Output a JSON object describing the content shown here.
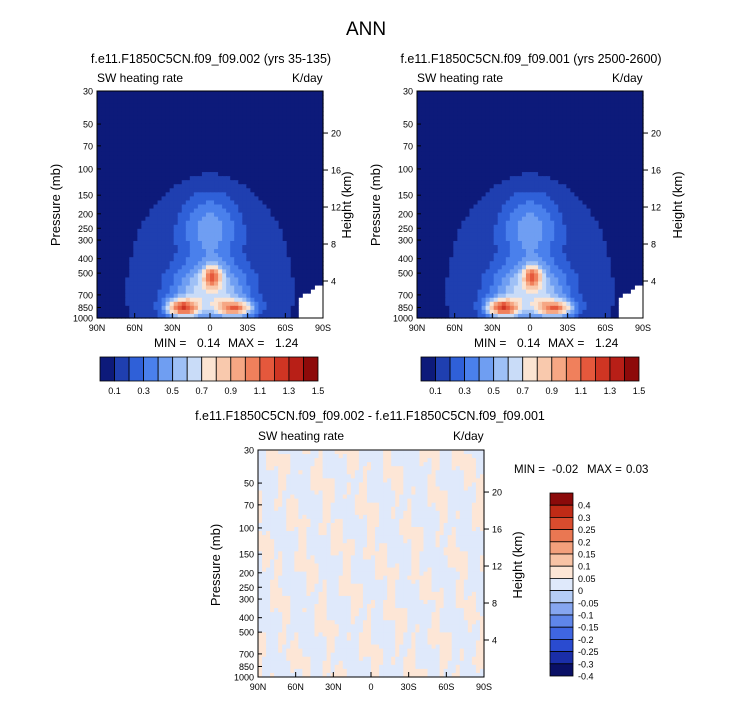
{
  "page_title": "ANN",
  "colors": {
    "abs": [
      "#0d1a7a",
      "#1f3fb0",
      "#2f60d8",
      "#4a80ec",
      "#6f9ef2",
      "#9ec0f6",
      "#c9dcf8",
      "#fbe4d2",
      "#f9c9ad",
      "#f6a784",
      "#f0805c",
      "#e5583c",
      "#cf3523",
      "#b81f17",
      "#8e0a0a"
    ],
    "diff": [
      "#0a1066",
      "#1a2ea8",
      "#2a4bd0",
      "#3f66e2",
      "#5f86ea",
      "#86a6f0",
      "#b5cdf6",
      "#dfe9fb",
      "#fde6d6",
      "#f8c3a5",
      "#f3a07c",
      "#ea7752",
      "#d94c2e",
      "#c02b16",
      "#8b0a0a"
    ]
  },
  "chart_data": [
    {
      "type": "heatmap",
      "title": "f.e11.F1850C5CN.f09_f09.002 (yrs 35-135)",
      "field_label": "SW heating rate",
      "units_label": "K/day",
      "ylabel": "Pressure (mb)",
      "ylabel_right": "Height (km)",
      "x_ticks": [
        "90N",
        "60N",
        "30N",
        "0",
        "30S",
        "60S",
        "90S"
      ],
      "y_ticks": [
        "30",
        "50",
        "70",
        "100",
        "150",
        "200",
        "250",
        "300",
        "400",
        "500",
        "700",
        "850",
        "1000"
      ],
      "y_right_ticks": [
        "20",
        "16",
        "12",
        "8",
        "4"
      ],
      "ylim": [
        1000,
        30
      ],
      "y_scale": "log",
      "min_label": "MIN =",
      "min_value": "0.14",
      "max_label": "MAX =",
      "max_value": "1.24",
      "levels": [
        0.1,
        0.2,
        0.3,
        0.4,
        0.5,
        0.6,
        0.7,
        0.8,
        0.9,
        1.0,
        1.1,
        1.2,
        1.3,
        1.4,
        1.5
      ],
      "colorbar_labels": [
        "0.1",
        "0.3",
        "0.5",
        "0.7",
        "0.9",
        "1.1",
        "1.3",
        "1.5"
      ]
    },
    {
      "type": "heatmap",
      "title": "f.e11.F1850C5CN.f09_f09.001 (yrs 2500-2600)",
      "field_label": "SW heating rate",
      "units_label": "K/day",
      "ylabel": "Pressure (mb)",
      "ylabel_right": "Height (km)",
      "x_ticks": [
        "90N",
        "60N",
        "30N",
        "0",
        "30S",
        "60S",
        "90S"
      ],
      "y_ticks": [
        "30",
        "50",
        "70",
        "100",
        "150",
        "200",
        "250",
        "300",
        "400",
        "500",
        "700",
        "850",
        "1000"
      ],
      "y_right_ticks": [
        "20",
        "16",
        "12",
        "8",
        "4"
      ],
      "ylim": [
        1000,
        30
      ],
      "y_scale": "log",
      "min_label": "MIN =",
      "min_value": "0.14",
      "max_label": "MAX =",
      "max_value": "1.24",
      "levels": [
        0.1,
        0.2,
        0.3,
        0.4,
        0.5,
        0.6,
        0.7,
        0.8,
        0.9,
        1.0,
        1.1,
        1.2,
        1.3,
        1.4,
        1.5
      ],
      "colorbar_labels": [
        "0.1",
        "0.3",
        "0.5",
        "0.7",
        "0.9",
        "1.1",
        "1.3",
        "1.5"
      ]
    },
    {
      "type": "heatmap",
      "title": "f.e11.F1850C5CN.f09_f09.002 - f.e11.F1850C5CN.f09_f09.001",
      "field_label": "SW heating rate",
      "units_label": "K/day",
      "ylabel": "Pressure (mb)",
      "ylabel_right": "Height (km)",
      "x_ticks": [
        "90N",
        "60N",
        "30N",
        "0",
        "30S",
        "60S",
        "90S"
      ],
      "y_ticks": [
        "30",
        "50",
        "70",
        "100",
        "150",
        "200",
        "250",
        "300",
        "400",
        "500",
        "700",
        "850",
        "1000"
      ],
      "y_right_ticks": [
        "20",
        "16",
        "12",
        "8",
        "4"
      ],
      "ylim": [
        1000,
        30
      ],
      "y_scale": "log",
      "min_label": "MIN =",
      "min_value": "-0.02",
      "max_label": "MAX =",
      "max_value": "0.03",
      "colorbar_labels": [
        "0.4",
        "0.3",
        "0.25",
        "0.2",
        "0.15",
        "0.1",
        "0.05",
        "0",
        "-0.05",
        "-0.1",
        "-0.15",
        "-0.2",
        "-0.25",
        "-0.3",
        "-0.4"
      ]
    }
  ]
}
